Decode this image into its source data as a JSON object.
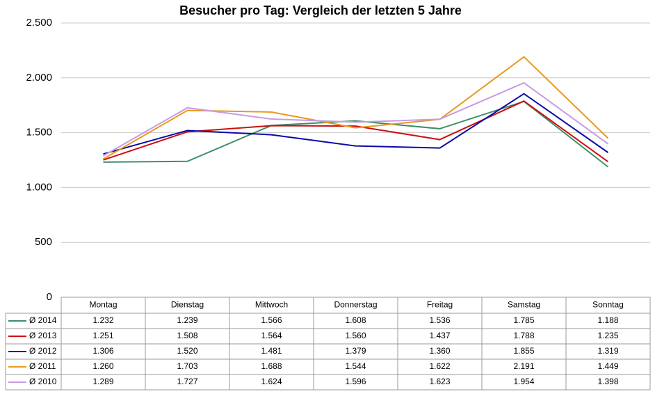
{
  "chart_data": {
    "type": "line",
    "title": "Besucher pro Tag: Vergleich der letzten 5 Jahre",
    "categories": [
      "Montag",
      "Dienstag",
      "Mittwoch",
      "Donnerstag",
      "Freitag",
      "Samstag",
      "Sonntag"
    ],
    "series": [
      {
        "name": "Ø 2014",
        "color": "#3a8f6a",
        "values": [
          1232,
          1239,
          1566,
          1608,
          1536,
          1785,
          1188
        ],
        "value_labels": [
          "1.232",
          "1.239",
          "1.566",
          "1.608",
          "1.536",
          "1.785",
          "1.188"
        ]
      },
      {
        "name": "Ø 2013",
        "color": "#cc1010",
        "values": [
          1251,
          1508,
          1564,
          1560,
          1437,
          1788,
          1235
        ],
        "value_labels": [
          "1.251",
          "1.508",
          "1.564",
          "1.560",
          "1.437",
          "1.788",
          "1.235"
        ]
      },
      {
        "name": "Ø 2012",
        "color": "#0a0aa8",
        "values": [
          1306,
          1520,
          1481,
          1379,
          1360,
          1855,
          1319
        ],
        "value_labels": [
          "1.306",
          "1.520",
          "1.481",
          "1.379",
          "1.360",
          "1.855",
          "1.319"
        ]
      },
      {
        "name": "Ø 2011",
        "color": "#e89a1c",
        "values": [
          1260,
          1703,
          1688,
          1544,
          1622,
          2191,
          1449
        ],
        "value_labels": [
          "1.260",
          "1.703",
          "1.688",
          "1.544",
          "1.622",
          "2.191",
          "1.449"
        ]
      },
      {
        "name": "Ø 2010",
        "color": "#c89ae6",
        "values": [
          1289,
          1727,
          1624,
          1596,
          1623,
          1954,
          1398
        ],
        "value_labels": [
          "1.289",
          "1.727",
          "1.624",
          "1.596",
          "1.623",
          "1.954",
          "1.398"
        ]
      }
    ],
    "ylim": [
      0,
      2500
    ],
    "yticks": [
      0,
      500,
      {
        "value": 1000,
        "label": "1.000"
      },
      {
        "value": 1500,
        "label": "1.500"
      },
      {
        "value": 2000,
        "label": "2.000"
      },
      {
        "value": 2500,
        "label": "2.500"
      }
    ],
    "grid": true
  }
}
